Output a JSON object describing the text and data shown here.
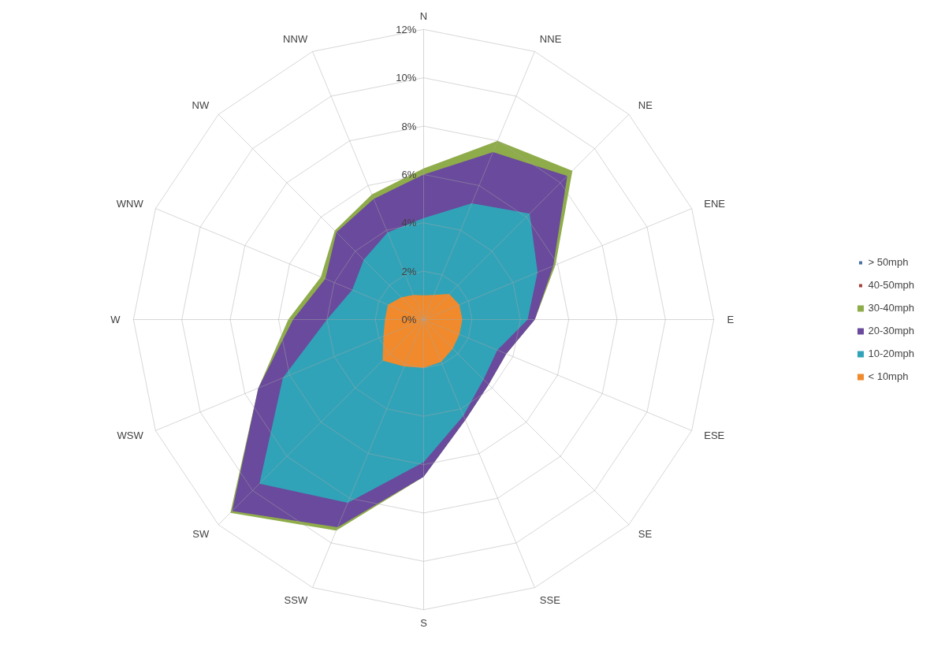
{
  "chart_data": {
    "type": "radar",
    "categories": [
      "N",
      "NNE",
      "NE",
      "ENE",
      "E",
      "ESE",
      "SE",
      "SSE",
      "S",
      "SSW",
      "SW",
      "WSW",
      "W",
      "WNW",
      "NW",
      "NNW"
    ],
    "series": [
      {
        "name": "30-40mph",
        "color": "#8fac4a",
        "values": [
          6.25,
          8.0,
          8.7,
          5.9,
          4.6,
          3.7,
          3.8,
          4.5,
          6.5,
          9.45,
          11.3,
          7.4,
          5.6,
          4.6,
          5.2,
          5.6
        ]
      },
      {
        "name": "20-30mph",
        "color": "#6a4a9c",
        "values": [
          6.0,
          7.5,
          8.4,
          5.8,
          4.6,
          3.7,
          3.8,
          4.5,
          6.5,
          9.3,
          11.2,
          7.4,
          5.4,
          4.4,
          5.1,
          5.4
        ]
      },
      {
        "name": "10-20mph",
        "color": "#31a3b8",
        "values": [
          4.2,
          5.2,
          6.2,
          5.1,
          4.3,
          3.3,
          3.5,
          4.3,
          5.9,
          8.2,
          9.6,
          6.3,
          4.0,
          3.2,
          3.5,
          3.9
        ]
      },
      {
        "name": "< 10mph",
        "color": "#f08a2c",
        "values": [
          1.0,
          1.1,
          1.5,
          1.6,
          1.6,
          1.6,
          1.7,
          1.9,
          2.0,
          2.1,
          2.4,
          1.8,
          1.6,
          1.6,
          1.3,
          1.1
        ]
      },
      {
        "name": "> 50mph",
        "color": "#4a6fa5",
        "values": [
          null,
          null,
          null,
          null,
          null,
          null,
          null,
          null,
          null,
          null,
          null,
          null,
          null,
          null,
          null,
          null
        ]
      },
      {
        "name": "40-50mph",
        "color": "#a5403c",
        "values": [
          null,
          null,
          null,
          null,
          null,
          null,
          null,
          null,
          null,
          null,
          null,
          null,
          null,
          null,
          null,
          null
        ]
      }
    ],
    "ylim": [
      0,
      12
    ],
    "yticks": [
      {
        "value": 0,
        "label": "0%"
      },
      {
        "value": 2,
        "label": "2%"
      },
      {
        "value": 4,
        "label": "4%"
      },
      {
        "value": 6,
        "label": "6%"
      },
      {
        "value": 8,
        "label": "8%"
      },
      {
        "value": 10,
        "label": "10%"
      },
      {
        "value": 12,
        "label": "12%"
      }
    ],
    "grid": true,
    "legend": "right"
  }
}
